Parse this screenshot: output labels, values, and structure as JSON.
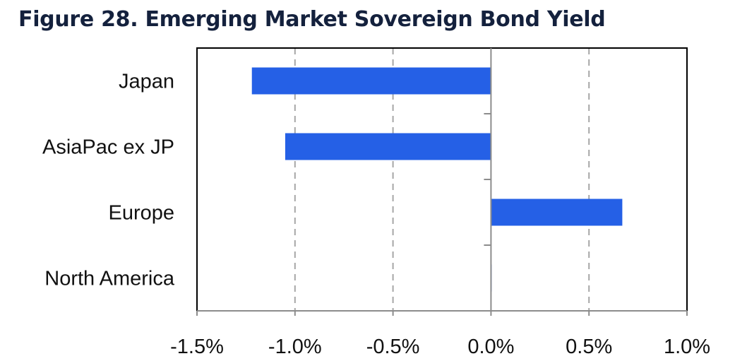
{
  "title": "Figure 28. Emerging Market Sovereign Bond Yield",
  "colors": {
    "bar": "#2560e6",
    "grid": "#a6a6a6",
    "axis": "#8c8c8c",
    "frame": "#000000"
  },
  "chart_data": {
    "type": "bar",
    "orientation": "horizontal",
    "categories": [
      "Japan",
      "AsiaPac ex JP",
      "Europe",
      "North America"
    ],
    "values": [
      -1.22,
      -1.05,
      0.67,
      0.0
    ],
    "value_unit": "%",
    "xlim": [
      -1.5,
      1.0
    ],
    "xticks": [
      -1.5,
      -1.0,
      -0.5,
      0.0,
      0.5,
      1.0
    ],
    "xtick_labels": [
      "-1.5%",
      "-1.0%",
      "-0.5%",
      "0.0%",
      "0.5%",
      "1.0%"
    ],
    "grid": "vertical-dashed",
    "legend": "none"
  }
}
